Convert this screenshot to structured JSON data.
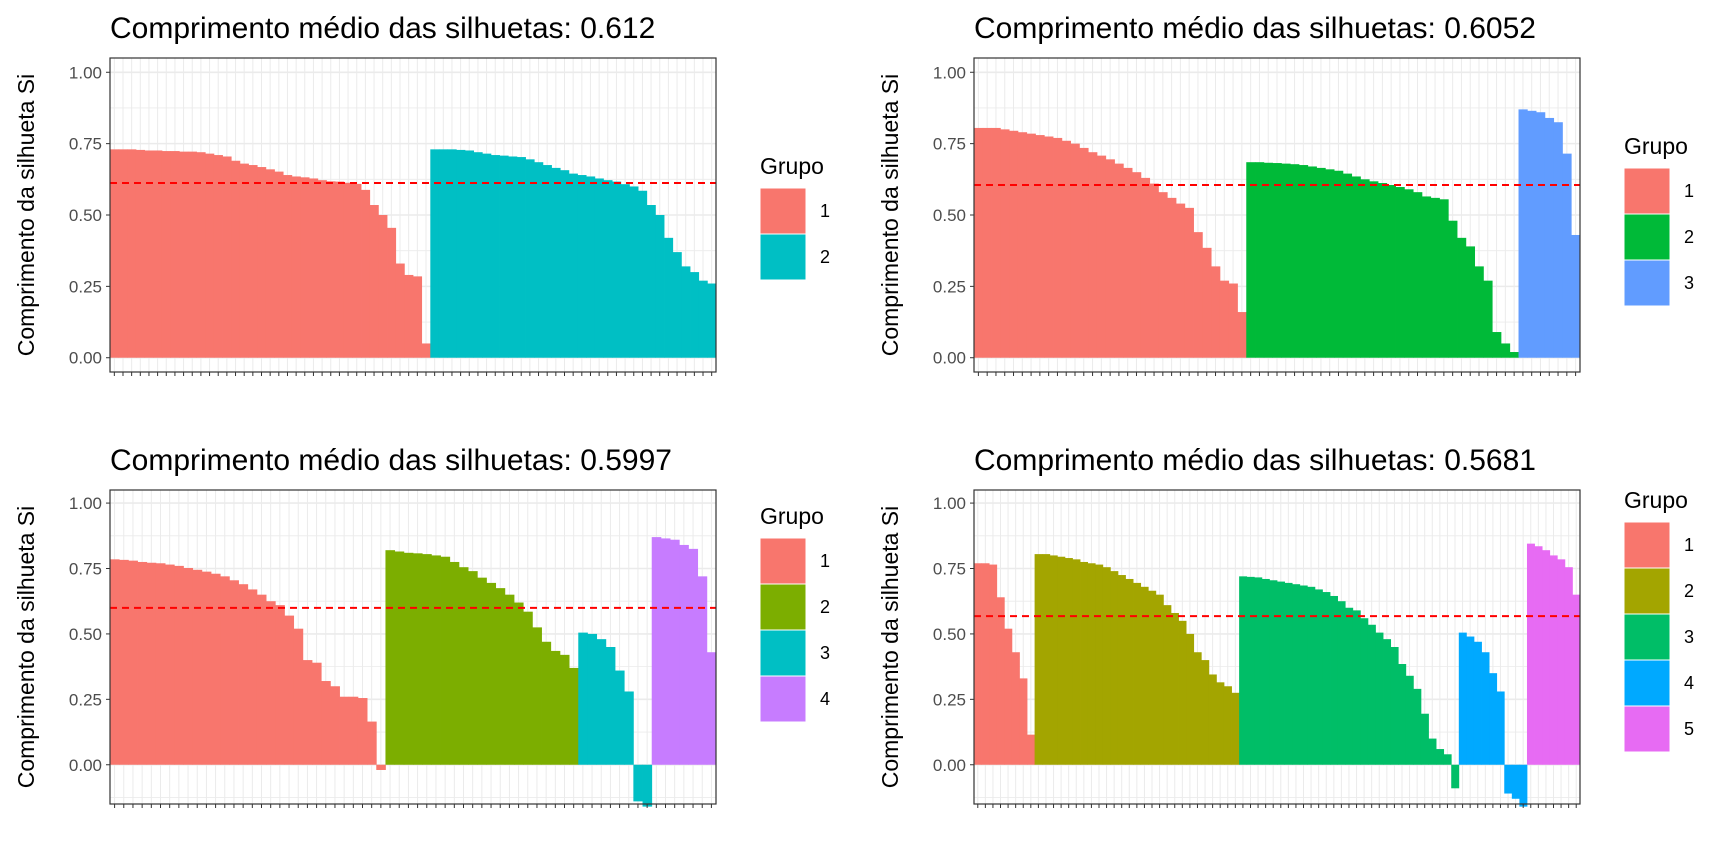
{
  "chart_data": [
    {
      "type": "bar",
      "title": "Comprimento médio das silhuetas: 0.612",
      "ylabel": "Comprimento da silhueta Si",
      "xlabel": "",
      "ylim": [
        -0.05,
        1.05
      ],
      "yticks": [
        "0.00",
        "0.25",
        "0.50",
        "0.75",
        "1.00"
      ],
      "average_line": 0.612,
      "legend_title": "Grupo",
      "legend_position": "right",
      "series": [
        {
          "name": "1",
          "color": "#F8766D",
          "values": [
            0.73,
            0.73,
            0.73,
            0.728,
            0.726,
            0.726,
            0.724,
            0.724,
            0.722,
            0.722,
            0.72,
            0.715,
            0.71,
            0.705,
            0.69,
            0.68,
            0.675,
            0.668,
            0.66,
            0.652,
            0.64,
            0.635,
            0.632,
            0.628,
            0.622,
            0.618,
            0.617,
            0.613,
            0.609,
            0.588,
            0.535,
            0.5,
            0.455,
            0.33,
            0.29,
            0.285,
            0.05
          ]
        },
        {
          "name": "2",
          "color": "#00BFC4",
          "values": [
            0.73,
            0.73,
            0.73,
            0.728,
            0.726,
            0.72,
            0.715,
            0.71,
            0.708,
            0.705,
            0.703,
            0.695,
            0.685,
            0.675,
            0.665,
            0.657,
            0.645,
            0.64,
            0.635,
            0.628,
            0.622,
            0.617,
            0.608,
            0.6,
            0.585,
            0.535,
            0.5,
            0.42,
            0.37,
            0.32,
            0.3,
            0.27,
            0.26
          ]
        }
      ]
    },
    {
      "type": "bar",
      "title": "Comprimento médio das silhuetas: 0.6052",
      "ylabel": "Comprimento da silhueta Si",
      "xlabel": "",
      "ylim": [
        -0.05,
        1.05
      ],
      "yticks": [
        "0.00",
        "0.25",
        "0.50",
        "0.75",
        "1.00"
      ],
      "average_line": 0.6052,
      "legend_title": "Grupo",
      "legend_position": "right",
      "series": [
        {
          "name": "1",
          "color": "#F8766D",
          "values": [
            0.805,
            0.805,
            0.805,
            0.8,
            0.795,
            0.79,
            0.785,
            0.78,
            0.775,
            0.77,
            0.76,
            0.75,
            0.735,
            0.72,
            0.708,
            0.695,
            0.68,
            0.665,
            0.65,
            0.63,
            0.61,
            0.58,
            0.56,
            0.54,
            0.525,
            0.44,
            0.385,
            0.32,
            0.27,
            0.26,
            0.16
          ]
        },
        {
          "name": "2",
          "color": "#00BA38",
          "values": [
            0.685,
            0.685,
            0.683,
            0.682,
            0.68,
            0.678,
            0.675,
            0.67,
            0.665,
            0.66,
            0.655,
            0.645,
            0.635,
            0.625,
            0.618,
            0.612,
            0.605,
            0.598,
            0.59,
            0.58,
            0.565,
            0.56,
            0.555,
            0.48,
            0.42,
            0.39,
            0.32,
            0.27,
            0.09,
            0.05,
            0.02
          ]
        },
        {
          "name": "3",
          "color": "#619CFF",
          "values": [
            0.87,
            0.865,
            0.86,
            0.84,
            0.825,
            0.715,
            0.43
          ]
        }
      ]
    },
    {
      "type": "bar",
      "title": "Comprimento médio das silhuetas: 0.5997",
      "ylabel": "Comprimento da silhueta Si",
      "xlabel": "",
      "ylim": [
        -0.15,
        1.05
      ],
      "yticks": [
        "0.00",
        "0.25",
        "0.50",
        "0.75",
        "1.00"
      ],
      "average_line": 0.5997,
      "legend_title": "Grupo",
      "legend_position": "right",
      "series": [
        {
          "name": "1",
          "color": "#F8766D",
          "values": [
            0.785,
            0.783,
            0.78,
            0.775,
            0.772,
            0.77,
            0.765,
            0.76,
            0.752,
            0.745,
            0.738,
            0.73,
            0.72,
            0.705,
            0.69,
            0.67,
            0.65,
            0.625,
            0.61,
            0.57,
            0.52,
            0.4,
            0.39,
            0.32,
            0.3,
            0.26,
            0.26,
            0.255,
            0.165,
            -0.02
          ]
        },
        {
          "name": "2",
          "color": "#7CAE00",
          "values": [
            0.82,
            0.815,
            0.81,
            0.808,
            0.805,
            0.8,
            0.795,
            0.775,
            0.755,
            0.74,
            0.715,
            0.695,
            0.675,
            0.65,
            0.62,
            0.585,
            0.525,
            0.47,
            0.435,
            0.42,
            0.37
          ]
        },
        {
          "name": "3",
          "color": "#00BFC4",
          "values": [
            0.505,
            0.5,
            0.48,
            0.45,
            0.36,
            0.28,
            -0.14,
            -0.16
          ]
        },
        {
          "name": "4",
          "color": "#C77CFF",
          "values": [
            0.87,
            0.865,
            0.86,
            0.84,
            0.825,
            0.72,
            0.43
          ]
        }
      ]
    },
    {
      "type": "bar",
      "title": "Comprimento médio das silhuetas: 0.5681",
      "ylabel": "Comprimento da silhueta Si",
      "xlabel": "",
      "ylim": [
        -0.15,
        1.05
      ],
      "yticks": [
        "0.00",
        "0.25",
        "0.50",
        "0.75",
        "1.00"
      ],
      "average_line": 0.5681,
      "legend_title": "Grupo",
      "legend_position": "right",
      "series": [
        {
          "name": "1",
          "color": "#F8766D",
          "values": [
            0.77,
            0.77,
            0.765,
            0.64,
            0.52,
            0.43,
            0.33,
            0.115
          ]
        },
        {
          "name": "2",
          "color": "#A3A500",
          "values": [
            0.805,
            0.805,
            0.8,
            0.795,
            0.79,
            0.785,
            0.775,
            0.77,
            0.765,
            0.755,
            0.74,
            0.725,
            0.71,
            0.695,
            0.68,
            0.665,
            0.65,
            0.61,
            0.58,
            0.55,
            0.5,
            0.43,
            0.4,
            0.345,
            0.315,
            0.3,
            0.275
          ]
        },
        {
          "name": "3",
          "color": "#00BE67",
          "values": [
            0.72,
            0.718,
            0.716,
            0.71,
            0.705,
            0.7,
            0.695,
            0.69,
            0.685,
            0.68,
            0.67,
            0.66,
            0.645,
            0.625,
            0.6,
            0.59,
            0.56,
            0.535,
            0.505,
            0.48,
            0.45,
            0.385,
            0.34,
            0.29,
            0.195,
            0.1,
            0.06,
            0.04,
            -0.09
          ]
        },
        {
          "name": "4",
          "color": "#00A9FF",
          "values": [
            0.505,
            0.49,
            0.47,
            0.43,
            0.35,
            0.28,
            -0.11,
            -0.13,
            -0.16
          ]
        },
        {
          "name": "5",
          "color": "#E76BF3",
          "values": [
            0.845,
            0.835,
            0.82,
            0.8,
            0.785,
            0.755,
            0.65
          ]
        }
      ]
    }
  ]
}
